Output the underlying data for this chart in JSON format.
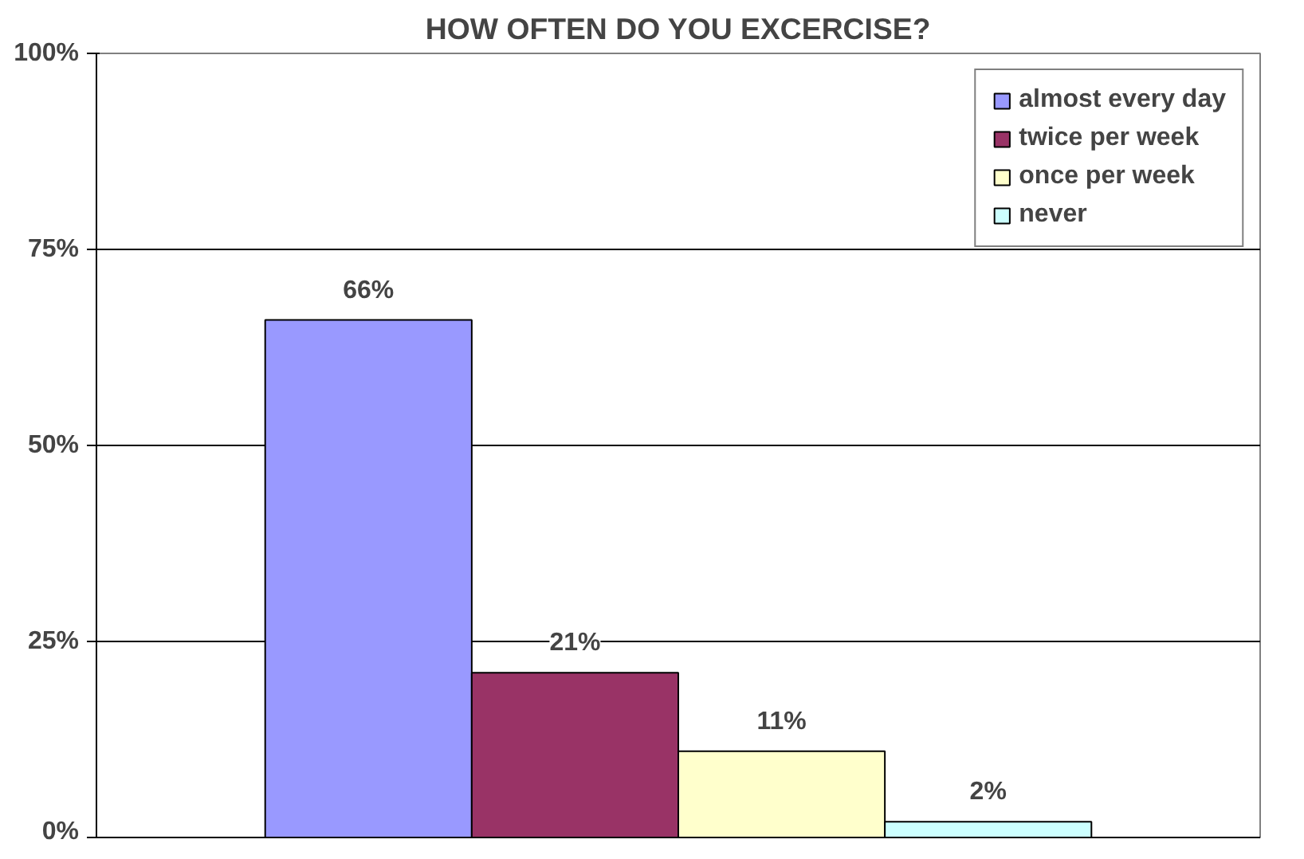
{
  "chart_data": {
    "type": "bar",
    "title": "HOW OFTEN DO YOU EXCERCISE?",
    "categories": [
      null
    ],
    "series": [
      {
        "name": "almost every day",
        "color": "#9999ff",
        "values": [
          66
        ],
        "value_labels": [
          "66%"
        ]
      },
      {
        "name": "twice per week",
        "color": "#993366",
        "values": [
          21
        ],
        "value_labels": [
          "21%"
        ]
      },
      {
        "name": "once per week",
        "color": "#ffffcc",
        "values": [
          11
        ],
        "value_labels": [
          "11%"
        ]
      },
      {
        "name": "never",
        "color": "#ccffff",
        "values": [
          2
        ],
        "value_labels": [
          "2%"
        ]
      }
    ],
    "ylim": [
      0,
      100
    ],
    "yticks": [
      {
        "value": 0,
        "label": "0%"
      },
      {
        "value": 25,
        "label": "25%"
      },
      {
        "value": 50,
        "label": "50%"
      },
      {
        "value": 75,
        "label": "75%"
      },
      {
        "value": 100,
        "label": "100%"
      }
    ],
    "grid": "y",
    "legend": "top right"
  }
}
